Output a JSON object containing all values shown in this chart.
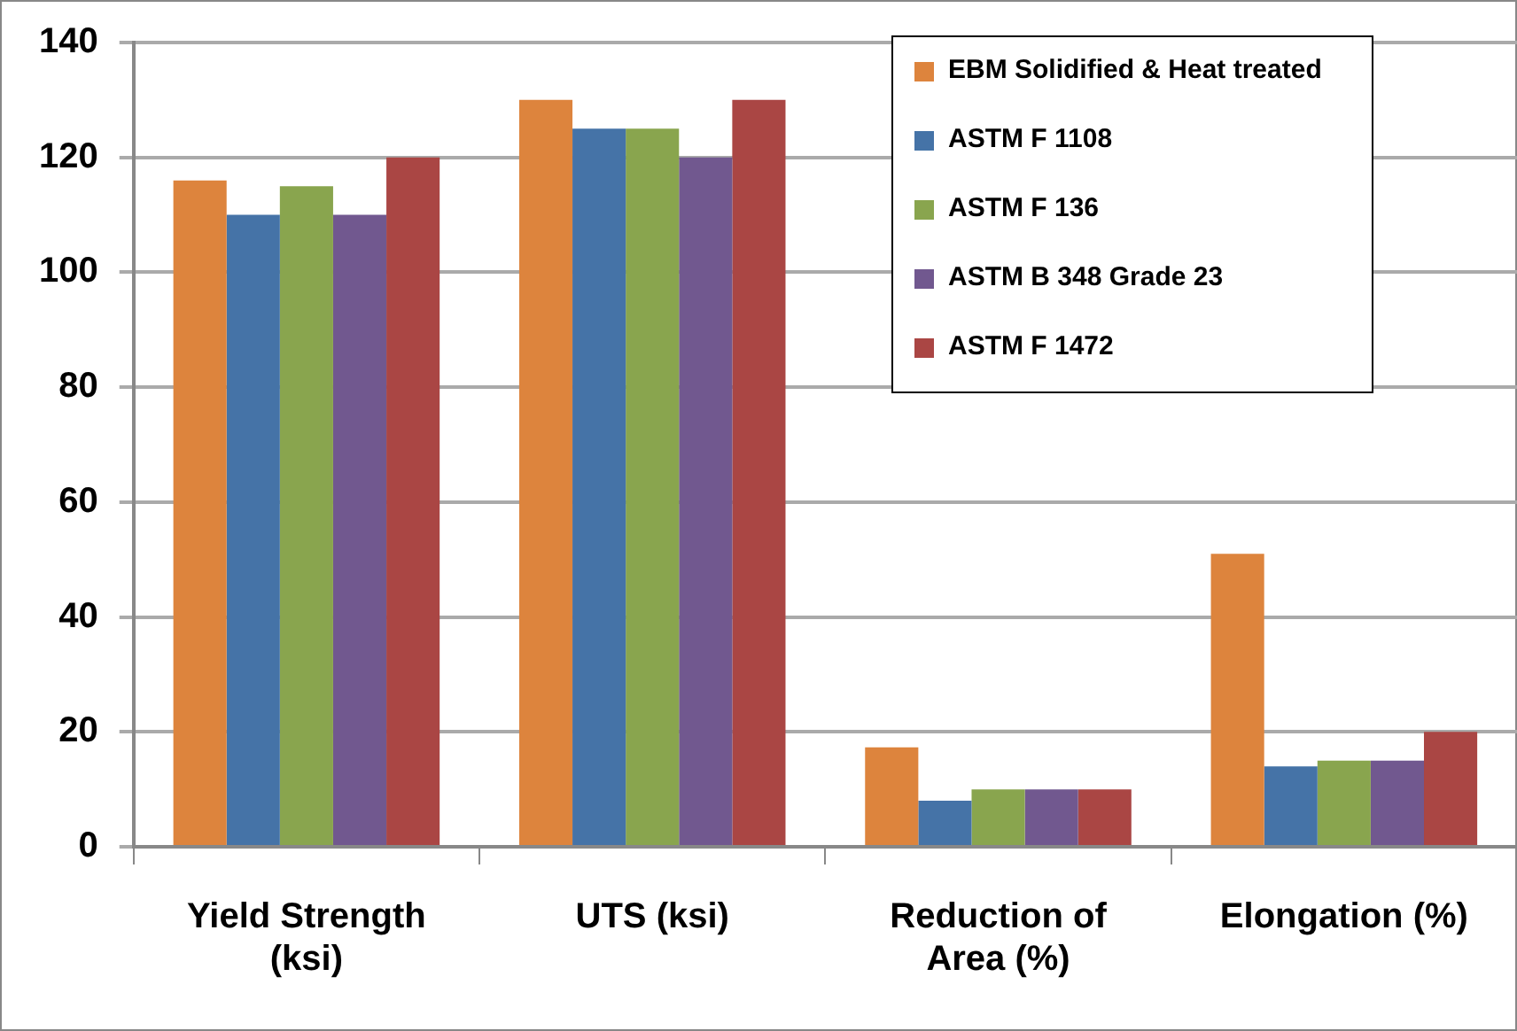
{
  "chart_data": {
    "type": "bar",
    "categories": [
      "Yield Strength (ksi)",
      "UTS (ksi)",
      "Reduction of Area (%)",
      "Elongation (%)"
    ],
    "series": [
      {
        "name": "EBM Solidified & Heat treated",
        "color": "#dd843d",
        "values": [
          116,
          130,
          17.3,
          51
        ]
      },
      {
        "name": "ASTM F 1108",
        "color": "#4573a7",
        "values": [
          110,
          125,
          8,
          14
        ]
      },
      {
        "name": "ASTM F 136",
        "color": "#89a54e",
        "values": [
          115,
          125,
          10,
          15
        ]
      },
      {
        "name": "ASTM B 348 Grade 23",
        "color": "#71588f",
        "values": [
          110,
          120,
          10,
          15
        ]
      },
      {
        "name": "ASTM F 1472",
        "color": "#aa4644",
        "values": [
          120,
          130,
          10,
          20
        ]
      }
    ],
    "ylim": [
      0,
      140
    ],
    "yticks": [
      0,
      20,
      40,
      60,
      80,
      100,
      120,
      140
    ],
    "grid": "y",
    "legend": "top right"
  }
}
